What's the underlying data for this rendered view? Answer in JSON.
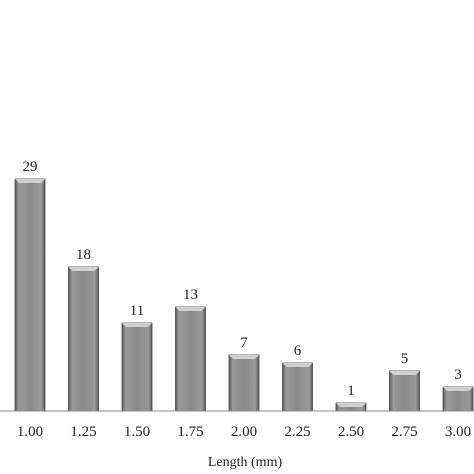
{
  "chart_data": {
    "type": "bar",
    "title": "",
    "xlabel": "Length (mm)",
    "ylabel": "",
    "categories": [
      "1.00",
      "1.25",
      "1.50",
      "1.75",
      "2.00",
      "2.25",
      "2.50",
      "2.75",
      "3.00"
    ],
    "values": [
      29,
      18,
      11,
      13,
      7,
      6,
      1,
      5,
      3
    ],
    "data_labels": [
      "29",
      "18",
      "11",
      "13",
      "7",
      "6",
      "1",
      "5",
      "3"
    ],
    "ylim": [
      0,
      50
    ],
    "grid": false,
    "legend": "none",
    "colors": {
      "bar_body": "#8c8c8c",
      "bar_dark": "#4a4a4a",
      "bar_light": "#cfcfcf",
      "axis": "#888888"
    }
  }
}
